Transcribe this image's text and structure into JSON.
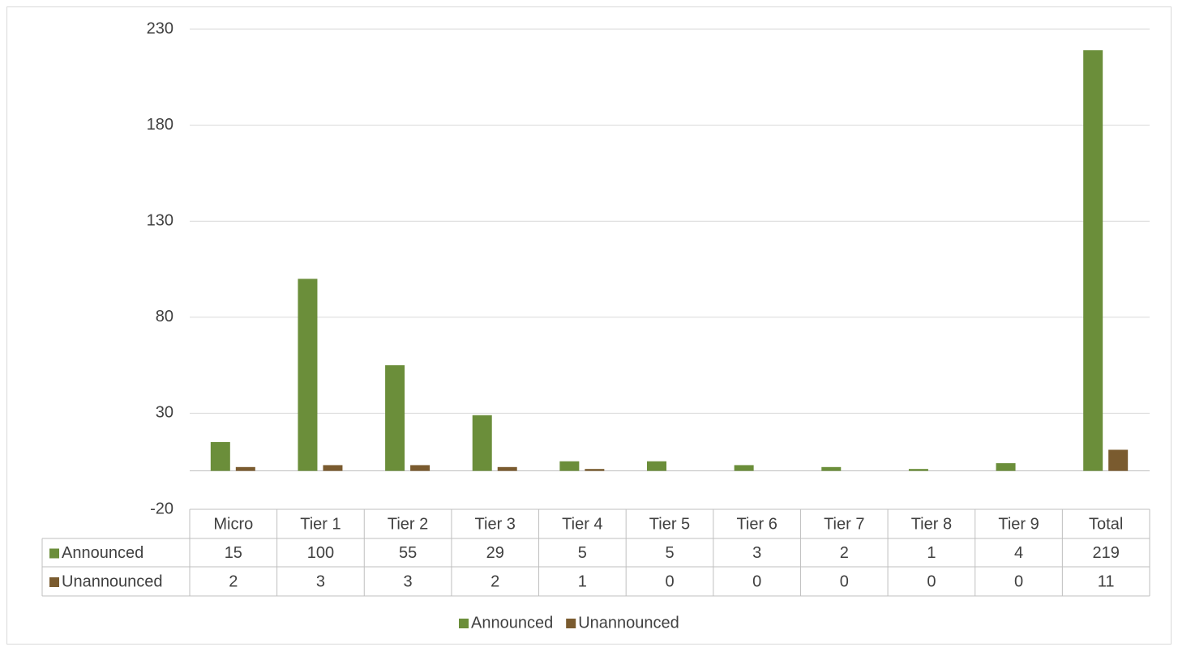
{
  "chart_data": {
    "type": "bar",
    "categories": [
      "Micro",
      "Tier 1",
      "Tier 2",
      "Tier 3",
      "Tier 4",
      "Tier 5",
      "Tier 6",
      "Tier 7",
      "Tier 8",
      "Tier 9",
      "Total"
    ],
    "series": [
      {
        "name": "Announced",
        "color": "#6b8e3a",
        "values": [
          15,
          100,
          55,
          29,
          5,
          5,
          3,
          2,
          1,
          4,
          219
        ]
      },
      {
        "name": "Unannounced",
        "color": "#7a5b2f",
        "values": [
          2,
          3,
          3,
          2,
          1,
          0,
          0,
          0,
          0,
          0,
          11
        ]
      }
    ],
    "ylim": [
      -20,
      230
    ],
    "yticks": [
      -20,
      30,
      80,
      130,
      180,
      230
    ],
    "grid": true,
    "legend": "bottom"
  }
}
